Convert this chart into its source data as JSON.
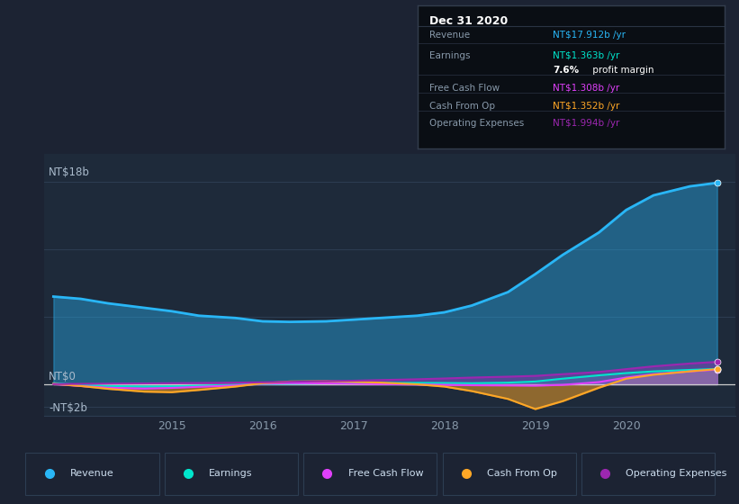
{
  "background_color": "#1c2333",
  "plot_bg_color": "#1e2a3a",
  "x_ticks": [
    2015,
    2016,
    2017,
    2018,
    2019,
    2020
  ],
  "x_min": 2013.6,
  "x_max": 2021.2,
  "y_min": -2.8,
  "y_max": 20.5,
  "revenue_color": "#29b6f6",
  "earnings_color": "#00e5cc",
  "fcf_color": "#e040fb",
  "cashop_color": "#ffa726",
  "opex_color": "#9c27b0",
  "revenue": [
    [
      2013.7,
      7.8
    ],
    [
      2014.0,
      7.6
    ],
    [
      2014.3,
      7.2
    ],
    [
      2014.7,
      6.8
    ],
    [
      2015.0,
      6.5
    ],
    [
      2015.3,
      6.1
    ],
    [
      2015.7,
      5.9
    ],
    [
      2016.0,
      5.6
    ],
    [
      2016.3,
      5.55
    ],
    [
      2016.7,
      5.6
    ],
    [
      2017.0,
      5.75
    ],
    [
      2017.3,
      5.9
    ],
    [
      2017.7,
      6.1
    ],
    [
      2018.0,
      6.4
    ],
    [
      2018.3,
      7.0
    ],
    [
      2018.7,
      8.2
    ],
    [
      2019.0,
      9.8
    ],
    [
      2019.3,
      11.5
    ],
    [
      2019.7,
      13.5
    ],
    [
      2020.0,
      15.5
    ],
    [
      2020.3,
      16.8
    ],
    [
      2020.7,
      17.6
    ],
    [
      2021.0,
      17.912
    ]
  ],
  "earnings": [
    [
      2013.7,
      0.1
    ],
    [
      2014.0,
      -0.05
    ],
    [
      2014.3,
      -0.15
    ],
    [
      2014.7,
      -0.2
    ],
    [
      2015.0,
      -0.18
    ],
    [
      2015.3,
      -0.12
    ],
    [
      2015.7,
      -0.05
    ],
    [
      2016.0,
      0.02
    ],
    [
      2016.3,
      0.05
    ],
    [
      2016.7,
      0.08
    ],
    [
      2017.0,
      0.1
    ],
    [
      2017.3,
      0.12
    ],
    [
      2017.7,
      0.13
    ],
    [
      2018.0,
      0.12
    ],
    [
      2018.3,
      0.1
    ],
    [
      2018.7,
      0.15
    ],
    [
      2019.0,
      0.25
    ],
    [
      2019.3,
      0.5
    ],
    [
      2019.7,
      0.8
    ],
    [
      2020.0,
      1.0
    ],
    [
      2020.3,
      1.15
    ],
    [
      2020.7,
      1.28
    ],
    [
      2021.0,
      1.363
    ]
  ],
  "fcf": [
    [
      2013.7,
      0.02
    ],
    [
      2014.0,
      -0.15
    ],
    [
      2014.3,
      -0.3
    ],
    [
      2014.7,
      -0.38
    ],
    [
      2015.0,
      -0.32
    ],
    [
      2015.3,
      -0.22
    ],
    [
      2015.7,
      -0.1
    ],
    [
      2016.0,
      0.05
    ],
    [
      2016.3,
      0.1
    ],
    [
      2016.7,
      0.08
    ],
    [
      2017.0,
      0.05
    ],
    [
      2017.3,
      0.02
    ],
    [
      2017.7,
      -0.02
    ],
    [
      2018.0,
      -0.05
    ],
    [
      2018.3,
      -0.08
    ],
    [
      2018.7,
      -0.1
    ],
    [
      2019.0,
      -0.12
    ],
    [
      2019.3,
      -0.05
    ],
    [
      2019.7,
      0.2
    ],
    [
      2020.0,
      0.6
    ],
    [
      2020.3,
      0.9
    ],
    [
      2020.7,
      1.15
    ],
    [
      2021.0,
      1.308
    ]
  ],
  "cashop": [
    [
      2013.7,
      0.05
    ],
    [
      2014.0,
      -0.15
    ],
    [
      2014.3,
      -0.4
    ],
    [
      2014.7,
      -0.65
    ],
    [
      2015.0,
      -0.7
    ],
    [
      2015.3,
      -0.5
    ],
    [
      2015.7,
      -0.2
    ],
    [
      2016.0,
      0.1
    ],
    [
      2016.3,
      0.25
    ],
    [
      2016.7,
      0.28
    ],
    [
      2017.0,
      0.22
    ],
    [
      2017.3,
      0.15
    ],
    [
      2017.7,
      0.0
    ],
    [
      2018.0,
      -0.2
    ],
    [
      2018.3,
      -0.6
    ],
    [
      2018.7,
      -1.3
    ],
    [
      2019.0,
      -2.2
    ],
    [
      2019.3,
      -1.5
    ],
    [
      2019.7,
      -0.3
    ],
    [
      2020.0,
      0.5
    ],
    [
      2020.3,
      0.85
    ],
    [
      2020.7,
      1.15
    ],
    [
      2021.0,
      1.352
    ]
  ],
  "opex": [
    [
      2013.7,
      0.02
    ],
    [
      2014.0,
      0.04
    ],
    [
      2014.3,
      0.06
    ],
    [
      2014.7,
      0.08
    ],
    [
      2015.0,
      0.1
    ],
    [
      2015.3,
      0.12
    ],
    [
      2015.7,
      0.15
    ],
    [
      2016.0,
      0.18
    ],
    [
      2016.3,
      0.22
    ],
    [
      2016.7,
      0.28
    ],
    [
      2017.0,
      0.32
    ],
    [
      2017.3,
      0.38
    ],
    [
      2017.7,
      0.45
    ],
    [
      2018.0,
      0.52
    ],
    [
      2018.3,
      0.6
    ],
    [
      2018.7,
      0.68
    ],
    [
      2019.0,
      0.75
    ],
    [
      2019.3,
      0.9
    ],
    [
      2019.7,
      1.1
    ],
    [
      2020.0,
      1.35
    ],
    [
      2020.3,
      1.6
    ],
    [
      2020.7,
      1.85
    ],
    [
      2021.0,
      1.994
    ]
  ],
  "tooltip": {
    "title": "Dec 31 2020",
    "rows": [
      {
        "label": "Revenue",
        "value": "NT$17.912b /yr",
        "value_color": "#29b6f6",
        "separator_above": true
      },
      {
        "label": "Earnings",
        "value": "NT$1.363b /yr",
        "value_color": "#00e5cc",
        "separator_above": true
      },
      {
        "label": "",
        "value": "7.6% profit margin",
        "value_color": "#ffffff",
        "bold_pct": true
      },
      {
        "label": "Free Cash Flow",
        "value": "NT$1.308b /yr",
        "value_color": "#e040fb",
        "separator_above": true
      },
      {
        "label": "Cash From Op",
        "value": "NT$1.352b /yr",
        "value_color": "#ffa726",
        "separator_above": true
      },
      {
        "label": "Operating Expenses",
        "value": "NT$1.994b /yr",
        "value_color": "#9c27b0",
        "separator_above": true
      }
    ]
  },
  "legend": [
    {
      "label": "Revenue",
      "color": "#29b6f6"
    },
    {
      "label": "Earnings",
      "color": "#00e5cc"
    },
    {
      "label": "Free Cash Flow",
      "color": "#e040fb"
    },
    {
      "label": "Cash From Op",
      "color": "#ffa726"
    },
    {
      "label": "Operating Expenses",
      "color": "#9c27b0"
    }
  ]
}
